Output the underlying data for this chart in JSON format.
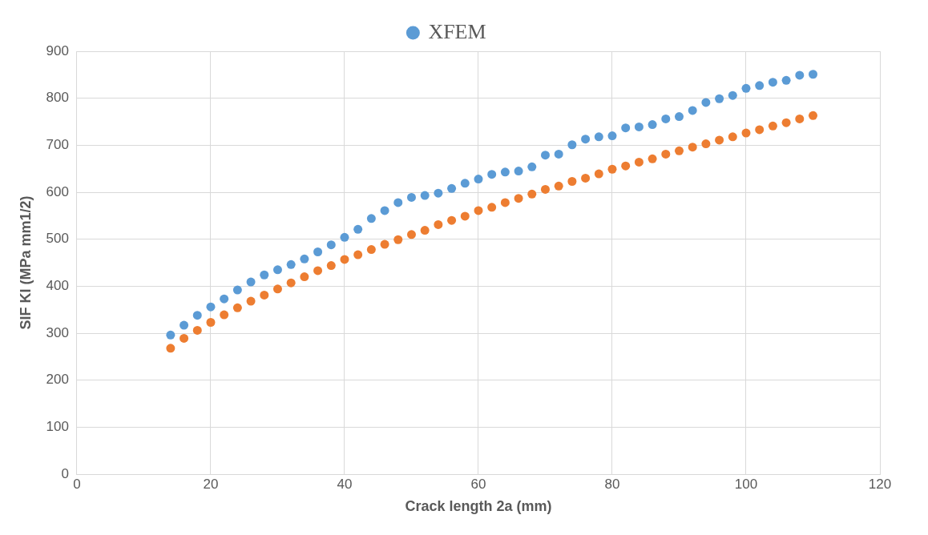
{
  "chart_data": {
    "type": "scatter",
    "xlabel": "Crack length 2a (mm)",
    "ylabel": "SIF KI (MPa mm1/2)",
    "x": [
      14,
      16,
      18,
      20,
      22,
      24,
      26,
      28,
      30,
      32,
      34,
      36,
      38,
      40,
      42,
      44,
      46,
      48,
      50,
      52,
      54,
      56,
      58,
      60,
      62,
      64,
      66,
      68,
      70,
      72,
      74,
      76,
      78,
      80,
      82,
      84,
      86,
      88,
      90,
      92,
      94,
      96,
      98,
      100,
      102,
      104,
      106,
      108,
      110
    ],
    "series": [
      {
        "name": "XFEM",
        "color": "#5b9bd5",
        "values": [
          296,
          317,
          338,
          356,
          373,
          392,
          409,
          424,
          435,
          446,
          458,
          473,
          488,
          504,
          521,
          544,
          561,
          578,
          589,
          593,
          598,
          608,
          619,
          628,
          638,
          643,
          645,
          654,
          679,
          681,
          701,
          713,
          718,
          720,
          737,
          739,
          744,
          756,
          761,
          774,
          791,
          799,
          806,
          821,
          827,
          834,
          838,
          849,
          851
        ]
      },
      {
        "color": "#ed7d31",
        "values": [
          268,
          289,
          306,
          323,
          339,
          354,
          368,
          381,
          394,
          407,
          420,
          433,
          444,
          457,
          467,
          478,
          489,
          499,
          510,
          519,
          531,
          540,
          549,
          561,
          568,
          578,
          587,
          596,
          606,
          613,
          623,
          630,
          639,
          649,
          656,
          664,
          671,
          681,
          688,
          696,
          703,
          711,
          718,
          726,
          733,
          741,
          748,
          756,
          763
        ]
      }
    ],
    "xlim": [
      0,
      120
    ],
    "xticks": [
      0,
      20,
      40,
      60,
      80,
      100,
      120
    ],
    "ylim": [
      0,
      900
    ],
    "yticks": [
      0,
      100,
      200,
      300,
      400,
      500,
      600,
      700,
      800,
      900
    ],
    "grid": true,
    "legend": "top",
    "marker": "circle"
  }
}
